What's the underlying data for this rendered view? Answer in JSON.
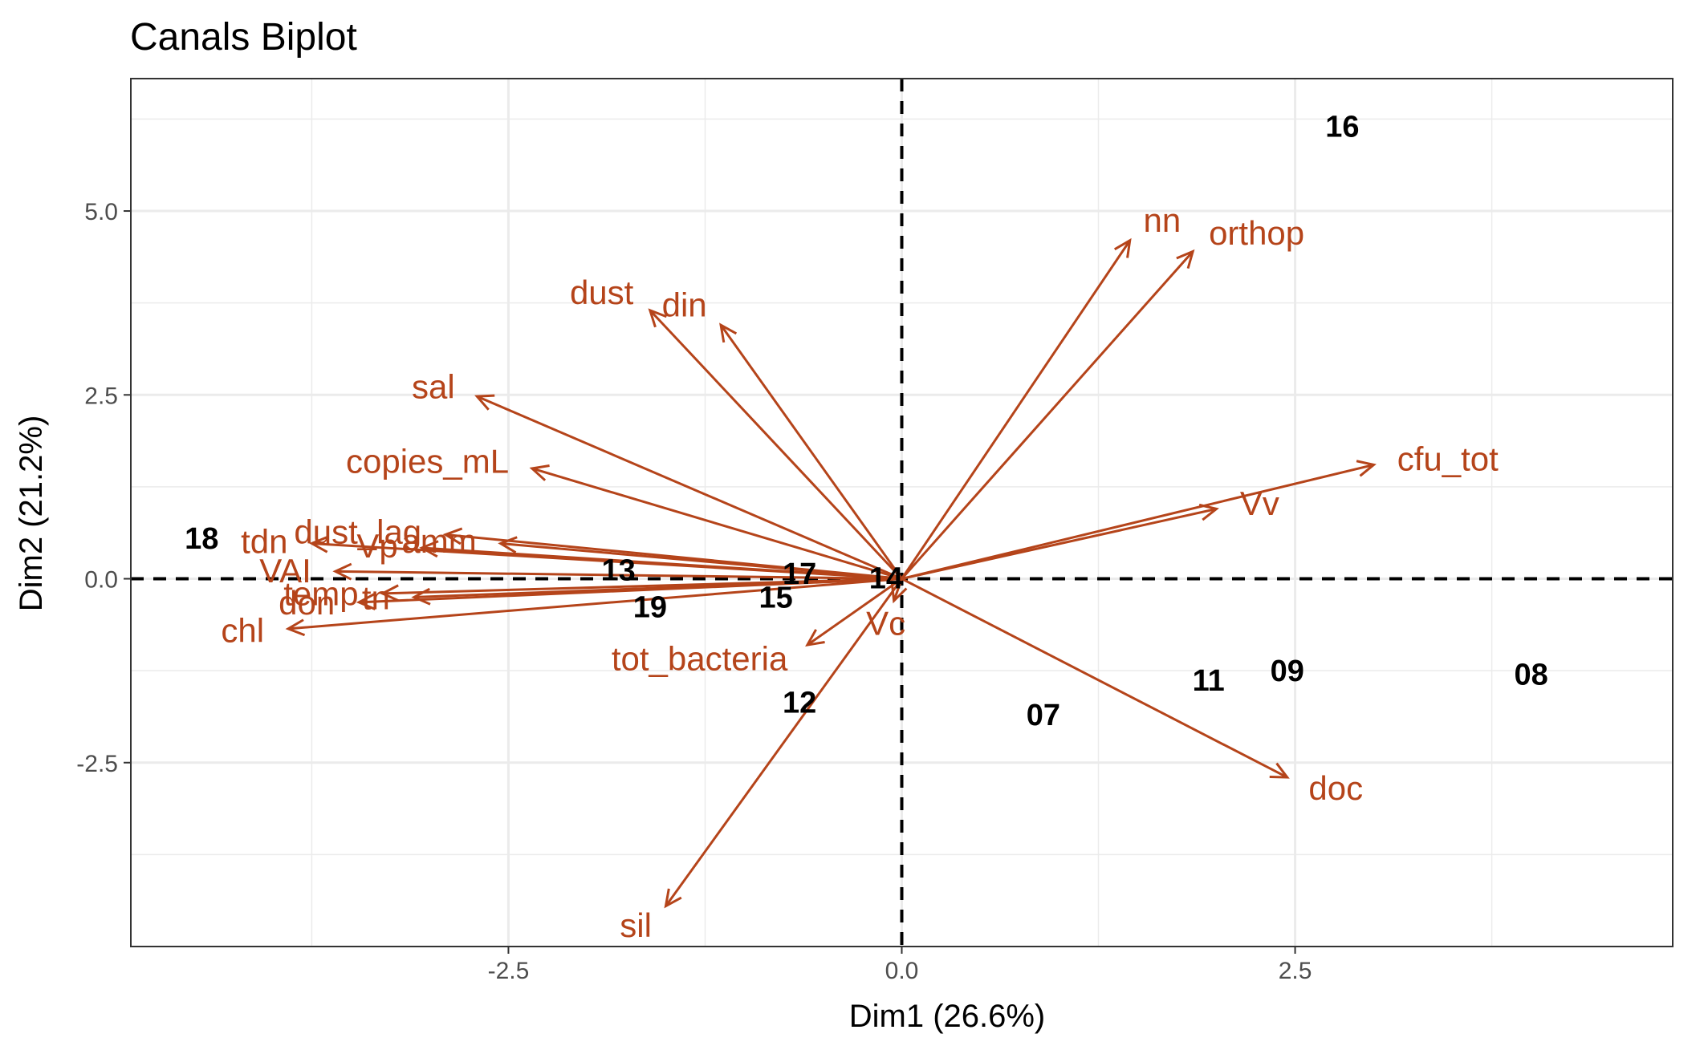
{
  "chart_data": {
    "type": "scatter",
    "subtype": "pca-biplot",
    "title": "Canals Biplot",
    "xlabel": "Dim1 (26.6%)",
    "ylabel": "Dim2 (21.2%)",
    "xlim": [
      -4.9,
      4.9
    ],
    "ylim": [
      -5.0,
      6.8
    ],
    "xticks": [
      -2.5,
      0.0,
      2.5
    ],
    "xtick_labels": [
      "-2.5",
      "0.0",
      "2.5"
    ],
    "yticks": [
      -2.5,
      0.0,
      2.5,
      5.0
    ],
    "ytick_labels": [
      "-2.5",
      "0.0",
      "2.5",
      "5.0"
    ],
    "grid": true,
    "reference_lines": {
      "x": 0,
      "y": 0,
      "style": "dashed"
    },
    "colors": {
      "variables": "#B5441A",
      "individuals": "#000000",
      "grid": "#ebebeb",
      "panel_border": "#333333"
    },
    "variables": [
      {
        "name": "nn",
        "x": 1.45,
        "y": 4.6
      },
      {
        "name": "orthop",
        "x": 1.85,
        "y": 4.45
      },
      {
        "name": "dust",
        "x": -1.6,
        "y": 3.65
      },
      {
        "name": "din",
        "x": -1.15,
        "y": 3.45
      },
      {
        "name": "sal",
        "x": -2.7,
        "y": 2.48
      },
      {
        "name": "copies_mL",
        "x": -2.35,
        "y": 1.5
      },
      {
        "name": "cfu_tot",
        "x": 3.0,
        "y": 1.55
      },
      {
        "name": "Vv",
        "x": 2.0,
        "y": 0.95
      },
      {
        "name": "dust_lag",
        "x": -2.9,
        "y": 0.6
      },
      {
        "name": "tdn",
        "x": -3.75,
        "y": 0.48
      },
      {
        "name": "VAI",
        "x": -3.6,
        "y": 0.1
      },
      {
        "name": "amm",
        "x": -2.55,
        "y": 0.48
      },
      {
        "name": "Vp",
        "x": -3.05,
        "y": 0.42
      },
      {
        "name": "temp",
        "x": -3.3,
        "y": -0.2
      },
      {
        "name": "tn",
        "x": -3.1,
        "y": -0.25
      },
      {
        "name": "don",
        "x": -3.45,
        "y": -0.32
      },
      {
        "name": "chl",
        "x": -3.9,
        "y": -0.68
      },
      {
        "name": "tot_bacteria",
        "x": -0.6,
        "y": -0.9
      },
      {
        "name": "Vc",
        "x": -0.05,
        "y": -0.3
      },
      {
        "name": "doc",
        "x": 2.45,
        "y": -2.7
      },
      {
        "name": "sil",
        "x": -1.5,
        "y": -4.45
      }
    ],
    "individuals": [
      {
        "label": "16",
        "x": 2.8,
        "y": 6.15
      },
      {
        "label": "18",
        "x": -4.45,
        "y": 0.55
      },
      {
        "label": "13",
        "x": -1.8,
        "y": 0.12
      },
      {
        "label": "17",
        "x": -0.65,
        "y": 0.07
      },
      {
        "label": "14",
        "x": -0.1,
        "y": 0.01
      },
      {
        "label": "15",
        "x": -0.8,
        "y": -0.25
      },
      {
        "label": "19",
        "x": -1.6,
        "y": -0.38
      },
      {
        "label": "12",
        "x": -0.65,
        "y": -1.68
      },
      {
        "label": "07",
        "x": 0.9,
        "y": -1.85
      },
      {
        "label": "11",
        "x": 1.95,
        "y": -1.38
      },
      {
        "label": "09",
        "x": 2.45,
        "y": -1.25
      },
      {
        "label": "08",
        "x": 4.0,
        "y": -1.3
      }
    ]
  }
}
